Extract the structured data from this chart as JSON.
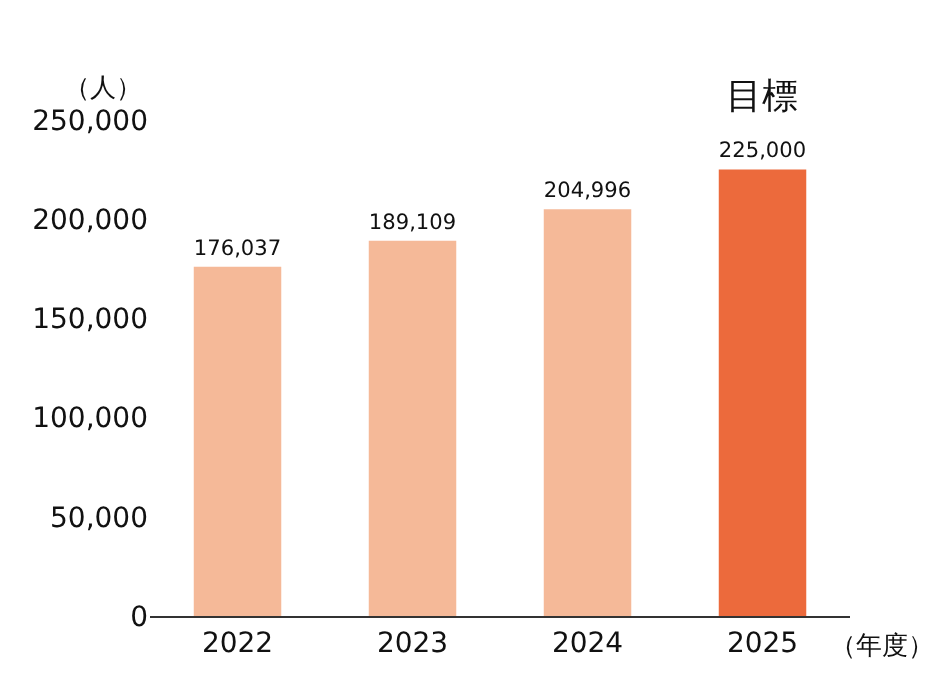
{
  "chart_data": {
    "type": "bar",
    "categories": [
      "2022",
      "2023",
      "2024",
      "2025"
    ],
    "values": [
      176037,
      189109,
      204996,
      225000
    ],
    "colors": [
      "#f5b998",
      "#f5b998",
      "#f5b998",
      "#ec6a3c"
    ],
    "value_labels": [
      "176,037",
      "189,109",
      "204,996",
      "225,000"
    ],
    "ylabel": "（人）",
    "xlabel": "（年度）",
    "ylim": [
      0,
      250000
    ],
    "yticks": [
      0,
      {
        "value": 50000,
        "label": "50,000"
      },
      {
        "value": 100000,
        "label": "100,000"
      },
      {
        "value": 150000,
        "label": "150,000"
      },
      {
        "value": 200000,
        "label": "200,000"
      },
      {
        "value": 250000,
        "label": "250,000"
      }
    ],
    "grid": false,
    "legend": false,
    "annotations": [
      {
        "text": "目標",
        "x": "2025",
        "y": 225000
      }
    ]
  }
}
